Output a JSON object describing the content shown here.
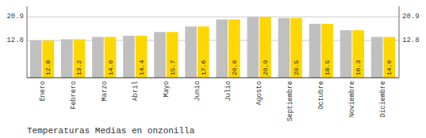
{
  "chart_data": {
    "type": "bar",
    "title": "Temperaturas Medias en onzonilla",
    "categories": [
      "Enero",
      "Febrero",
      "Marzo",
      "Abril",
      "Mayo",
      "Junio",
      "Julio",
      "Agosto",
      "Septiembre",
      "Octubre",
      "Noviembre",
      "Diciembre"
    ],
    "series": [
      {
        "color": "#C0C0C0",
        "values": [
          12.8,
          13.2,
          14.0,
          14.4,
          15.7,
          17.6,
          20.0,
          20.9,
          20.5,
          18.5,
          16.3,
          14.0
        ]
      },
      {
        "color": "#FFD700",
        "values": [
          12.8,
          13.2,
          14.0,
          14.4,
          15.7,
          17.6,
          20.0,
          20.9,
          20.5,
          18.5,
          16.3,
          14.0
        ],
        "value_labels": [
          "12.8",
          "13.2",
          "14.0",
          "14.4",
          "15.7",
          "17.6",
          "20.0",
          "20.9",
          "20.5",
          "18.5",
          "16.3",
          "14.0"
        ]
      }
    ],
    "ylim": [
      0.0,
      24.5
    ],
    "yticks": [
      12.8,
      20.9
    ],
    "grid": true,
    "data_labels": true
  }
}
